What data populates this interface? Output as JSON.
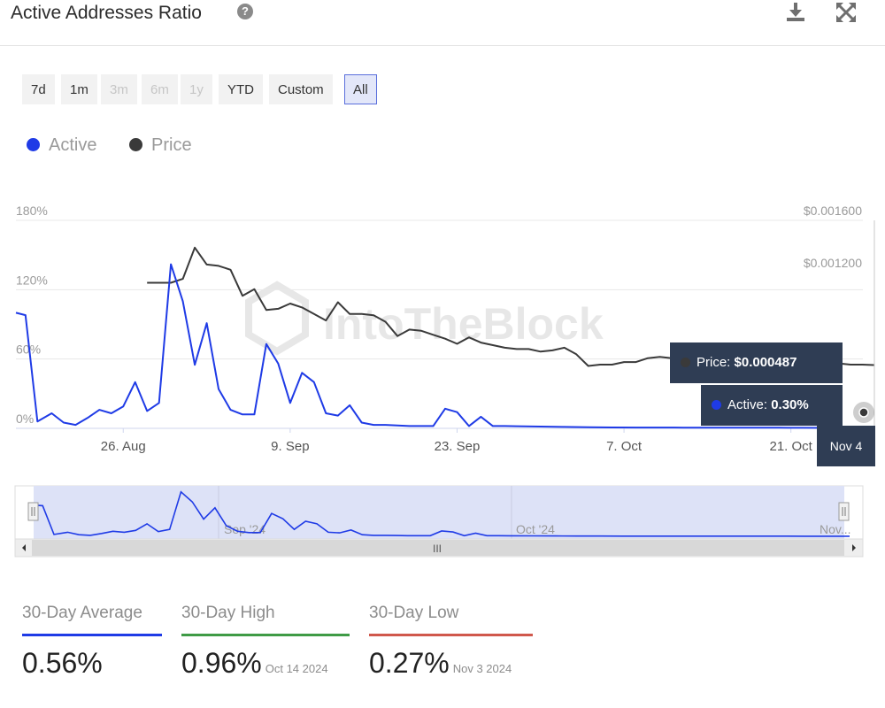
{
  "header": {
    "title": "Active Addresses Ratio",
    "help_icon": "question-icon",
    "download_icon": "download-icon",
    "expand_icon": "expand-icon"
  },
  "range_buttons": [
    {
      "label": "7d",
      "state": "enabled"
    },
    {
      "label": "1m",
      "state": "enabled"
    },
    {
      "label": "3m",
      "state": "disabled"
    },
    {
      "label": "6m",
      "state": "disabled"
    },
    {
      "label": "1y",
      "state": "disabled"
    },
    {
      "label": "YTD",
      "state": "enabled"
    },
    {
      "label": "Custom",
      "state": "enabled"
    },
    {
      "label": "All",
      "state": "active"
    }
  ],
  "watermark": "IntoTheBlock",
  "colors": {
    "active": "#1f3be6",
    "price": "#3a3a3a",
    "tooltip": "#2f3d54",
    "navigator_fill": "#dde2f7",
    "high": "#3f9b46",
    "low": "#d0584c"
  },
  "tooltip": {
    "price_label": "Price:",
    "price_value": "$0.000487",
    "active_label": "Active:",
    "active_value": "0.30%",
    "date": "Nov 4"
  },
  "navigator": {
    "labels": [
      "Sep '24",
      "Oct '24",
      "Nov..."
    ],
    "scroll_handle": "III"
  },
  "chart_data": {
    "type": "line",
    "legend": [
      "Active",
      "Price"
    ],
    "legend_position": "top-left",
    "grid": true,
    "y_left": {
      "ticks": [
        "0%",
        "60%",
        "120%",
        "180%"
      ],
      "range": [
        0,
        180
      ]
    },
    "y_right": {
      "ticks": [
        "$0.001200",
        "$0.001600"
      ],
      "range": [
        0,
        0.0016
      ]
    },
    "x_ticks": [
      "26. Aug",
      "9. Sep",
      "23. Sep",
      "7. Oct",
      "21. Oct"
    ],
    "x_tick_days": [
      9,
      23,
      37,
      51,
      65
    ],
    "x_range_days": [
      0,
      72
    ],
    "series": [
      {
        "name": "Active",
        "axis": "left",
        "days": [
          0,
          0.8,
          1.8,
          3,
          4,
          5,
          6,
          7,
          8,
          9,
          10,
          11,
          12,
          13,
          14,
          15,
          16,
          17,
          18,
          19,
          20,
          21,
          22,
          23,
          24,
          25,
          26,
          27,
          28,
          29,
          30,
          31,
          32,
          33,
          34,
          35,
          36,
          37,
          38,
          39,
          40,
          41,
          42,
          44,
          46,
          48,
          50,
          52,
          54,
          56,
          58,
          60,
          62,
          64,
          66,
          68,
          70,
          71,
          72
        ],
        "values": [
          100,
          98,
          6,
          13,
          5,
          3,
          9,
          16,
          13,
          19,
          40,
          15,
          22,
          142,
          110,
          55,
          91,
          34,
          16,
          12,
          12,
          73,
          56,
          22,
          48,
          40,
          13,
          11,
          20,
          5,
          3,
          3,
          2.5,
          2,
          2,
          2,
          17,
          14,
          2,
          10,
          2,
          2,
          1.8,
          1.5,
          1.2,
          0.9,
          0.8,
          0.7,
          0.7,
          0.6,
          0.6,
          0.55,
          0.5,
          0.5,
          0.45,
          0.4,
          0.35,
          0.3,
          0.3
        ]
      },
      {
        "name": "Price",
        "axis": "right",
        "days": [
          11,
          12,
          13,
          14,
          15,
          16,
          17,
          18,
          19,
          20,
          21,
          22,
          23,
          24,
          25,
          26,
          27,
          28,
          29,
          30,
          31,
          32,
          33,
          34,
          35,
          36,
          37,
          38,
          39,
          40,
          41,
          42,
          43,
          44,
          45,
          46,
          47,
          48,
          49,
          50,
          51,
          52,
          53,
          54,
          55,
          56,
          57,
          58,
          59,
          60,
          61,
          62,
          63,
          64,
          65,
          66,
          67,
          68,
          69,
          70,
          71,
          72
        ],
        "values": [
          0.00112,
          0.00112,
          0.00112,
          0.00115,
          0.00139,
          0.00126,
          0.00125,
          0.00122,
          0.00102,
          0.00107,
          0.00091,
          0.00092,
          0.00096,
          0.00093,
          0.00088,
          0.00083,
          0.00097,
          0.00088,
          0.00088,
          0.00087,
          0.00082,
          0.00071,
          0.00076,
          0.00075,
          0.00072,
          0.00069,
          0.00065,
          0.0007,
          0.00066,
          0.00064,
          0.00062,
          0.00061,
          0.00061,
          0.00059,
          0.0006,
          0.00062,
          0.00057,
          0.00048,
          0.00049,
          0.00049,
          0.00051,
          0.00051,
          0.00054,
          0.00055,
          0.00054,
          0.0005,
          0.00048,
          0.00053,
          0.00054,
          0.00062,
          0.00059,
          0.00062,
          0.00061,
          0.0006,
          0.00058,
          0.00056,
          0.00054,
          0.00052,
          0.0005,
          0.00049,
          0.00049,
          0.000487
        ]
      }
    ]
  },
  "stats": [
    {
      "label": "30-Day Average",
      "value": "0.56%",
      "date": "",
      "color": "#1f3be6"
    },
    {
      "label": "30-Day High",
      "value": "0.96%",
      "date": "Oct 14 2024",
      "color": "#3f9b46"
    },
    {
      "label": "30-Day Low",
      "value": "0.27%",
      "date": "Nov 3 2024",
      "color": "#d0584c"
    }
  ]
}
